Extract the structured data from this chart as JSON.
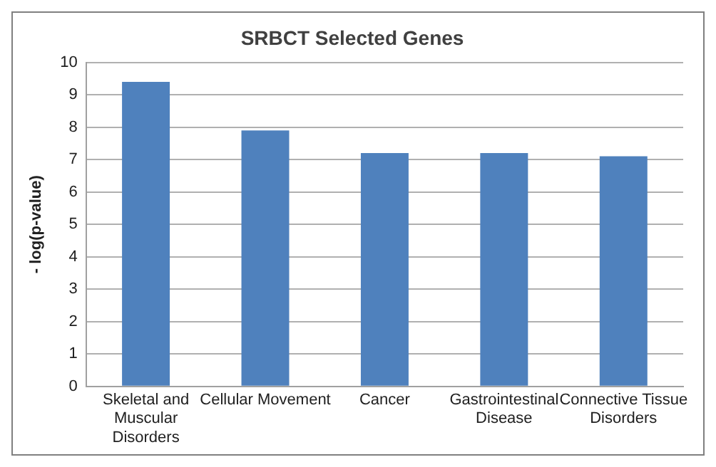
{
  "chart_data": {
    "type": "bar",
    "title": "SRBCT Selected Genes",
    "ylabel": "- log(p-value)",
    "categories": [
      "Skeletal and Muscular Disorders",
      "Cellular Movement",
      "Cancer",
      "Gastrointestinal Disease",
      "Connective Tissue Disorders"
    ],
    "values": [
      9.4,
      7.9,
      7.2,
      7.2,
      7.1
    ],
    "color": "#4f81bd",
    "ylim": [
      0,
      10
    ],
    "yticks": [
      0,
      1,
      2,
      3,
      4,
      5,
      6,
      7,
      8,
      9,
      10
    ],
    "grid": "y",
    "legend": false
  }
}
